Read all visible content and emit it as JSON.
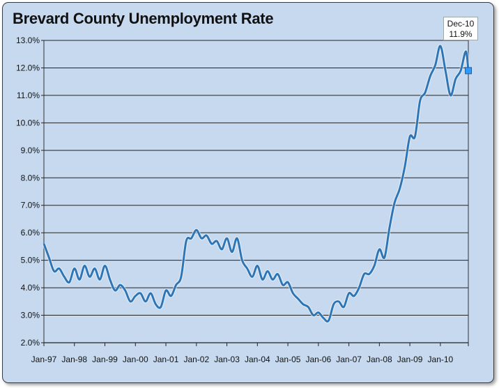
{
  "chart_data": {
    "type": "line",
    "title": "Brevard County Unemployment Rate",
    "xlabel": "",
    "ylabel": "",
    "ylim": [
      2.0,
      13.0
    ],
    "yticks": [
      "2.0%",
      "3.0%",
      "4.0%",
      "5.0%",
      "6.0%",
      "7.0%",
      "8.0%",
      "9.0%",
      "10.0%",
      "11.0%",
      "12.0%",
      "13.0%"
    ],
    "xticks": [
      "Jan-97",
      "Jan-98",
      "Jan-99",
      "Jan-00",
      "Jan-01",
      "Jan-02",
      "Jan-03",
      "Jan-04",
      "Jan-05",
      "Jan-06",
      "Jan-07",
      "Jan-08",
      "Jan-09",
      "Jan-10"
    ],
    "grid": "horizontal",
    "legend": "none",
    "callout": {
      "label": "Dec-10",
      "value": "11.9%"
    },
    "series": [
      {
        "color": "#2e75b6",
        "points": [
          [
            "Jan-97",
            5.6
          ],
          [
            "Mar-97",
            5.1
          ],
          [
            "May-97",
            4.6
          ],
          [
            "Jul-97",
            4.7
          ],
          [
            "Sep-97",
            4.4
          ],
          [
            "Nov-97",
            4.2
          ],
          [
            "Jan-98",
            4.7
          ],
          [
            "Mar-98",
            4.3
          ],
          [
            "May-98",
            4.8
          ],
          [
            "Jul-98",
            4.4
          ],
          [
            "Sep-98",
            4.7
          ],
          [
            "Nov-98",
            4.3
          ],
          [
            "Jan-99",
            4.8
          ],
          [
            "Mar-99",
            4.3
          ],
          [
            "May-99",
            3.9
          ],
          [
            "Jul-99",
            4.1
          ],
          [
            "Sep-99",
            3.9
          ],
          [
            "Nov-99",
            3.5
          ],
          [
            "Jan-00",
            3.7
          ],
          [
            "Mar-00",
            3.8
          ],
          [
            "May-00",
            3.5
          ],
          [
            "Jul-00",
            3.8
          ],
          [
            "Sep-00",
            3.4
          ],
          [
            "Nov-00",
            3.3
          ],
          [
            "Jan-01",
            3.9
          ],
          [
            "Mar-01",
            3.7
          ],
          [
            "May-01",
            4.1
          ],
          [
            "Jul-01",
            4.4
          ],
          [
            "Sep-01",
            5.7
          ],
          [
            "Nov-01",
            5.8
          ],
          [
            "Jan-02",
            6.1
          ],
          [
            "Mar-02",
            5.8
          ],
          [
            "May-02",
            5.9
          ],
          [
            "Jul-02",
            5.6
          ],
          [
            "Sep-02",
            5.7
          ],
          [
            "Nov-02",
            5.4
          ],
          [
            "Jan-03",
            5.8
          ],
          [
            "Mar-03",
            5.3
          ],
          [
            "May-03",
            5.8
          ],
          [
            "Jul-03",
            5.0
          ],
          [
            "Sep-03",
            4.7
          ],
          [
            "Nov-03",
            4.4
          ],
          [
            "Jan-04",
            4.8
          ],
          [
            "Mar-04",
            4.3
          ],
          [
            "May-04",
            4.6
          ],
          [
            "Jul-04",
            4.3
          ],
          [
            "Sep-04",
            4.5
          ],
          [
            "Nov-04",
            4.1
          ],
          [
            "Jan-05",
            4.2
          ],
          [
            "Mar-05",
            3.8
          ],
          [
            "May-05",
            3.6
          ],
          [
            "Jul-05",
            3.4
          ],
          [
            "Sep-05",
            3.3
          ],
          [
            "Nov-05",
            3.0
          ],
          [
            "Jan-06",
            3.1
          ],
          [
            "Mar-06",
            2.9
          ],
          [
            "May-06",
            2.8
          ],
          [
            "Jul-06",
            3.4
          ],
          [
            "Sep-06",
            3.5
          ],
          [
            "Nov-06",
            3.3
          ],
          [
            "Jan-07",
            3.8
          ],
          [
            "Mar-07",
            3.7
          ],
          [
            "May-07",
            4.0
          ],
          [
            "Jul-07",
            4.5
          ],
          [
            "Sep-07",
            4.5
          ],
          [
            "Nov-07",
            4.8
          ],
          [
            "Jan-08",
            5.4
          ],
          [
            "Mar-08",
            5.1
          ],
          [
            "May-08",
            6.2
          ],
          [
            "Jul-08",
            7.1
          ],
          [
            "Sep-08",
            7.6
          ],
          [
            "Nov-08",
            8.4
          ],
          [
            "Jan-09",
            9.5
          ],
          [
            "Mar-09",
            9.5
          ],
          [
            "May-09",
            10.8
          ],
          [
            "Jul-09",
            11.1
          ],
          [
            "Sep-09",
            11.7
          ],
          [
            "Nov-09",
            12.1
          ],
          [
            "Jan-10",
            12.8
          ],
          [
            "Mar-10",
            11.9
          ],
          [
            "May-10",
            11.0
          ],
          [
            "Jul-10",
            11.6
          ],
          [
            "Sep-10",
            11.9
          ],
          [
            "Nov-10",
            12.6
          ],
          [
            "Dec-10",
            11.9
          ]
        ]
      }
    ]
  }
}
